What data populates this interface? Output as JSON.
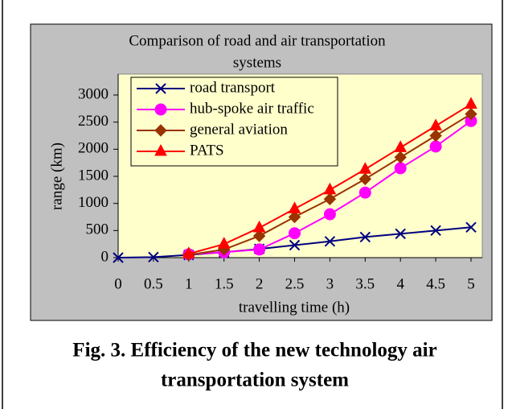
{
  "chart_data": {
    "type": "line",
    "title": [
      "Comparison of road and air transportation",
      "systems"
    ],
    "xlabel": "travelling time (h)",
    "ylabel": "range (km)",
    "x": [
      0,
      0.5,
      1,
      1.5,
      2,
      2.5,
      3,
      3.5,
      4,
      4.5,
      5
    ],
    "xlim": [
      0,
      5
    ],
    "xticks": [
      0,
      0.5,
      1,
      1.5,
      2,
      2.5,
      3,
      3.5,
      4,
      4.5,
      5
    ],
    "ylim": [
      0,
      3000
    ],
    "yticks": [
      0,
      500,
      1000,
      1500,
      2000,
      2500,
      3000
    ],
    "series": [
      {
        "name": "road transport",
        "color": "#000080",
        "marker": "x",
        "values": [
          0,
          10,
          50,
          100,
          160,
          230,
          300,
          380,
          440,
          500,
          560
        ]
      },
      {
        "name": "hub-spoke air traffic",
        "color": "#ff00ff",
        "marker": "circle",
        "values": [
          null,
          null,
          60,
          100,
          150,
          450,
          800,
          1200,
          1650,
          2050,
          2520
        ]
      },
      {
        "name": "general aviation",
        "color": "#993300",
        "marker": "diamond",
        "values": [
          null,
          null,
          50,
          150,
          400,
          750,
          1080,
          1450,
          1850,
          2250,
          2650
        ]
      },
      {
        "name": "PATS",
        "color": "#ff0000",
        "marker": "triangle",
        "values": [
          null,
          null,
          70,
          250,
          550,
          900,
          1250,
          1630,
          2030,
          2430,
          2830
        ]
      }
    ],
    "caption": [
      "Fig. 3. Efficiency of the new technology air",
      "transportation system"
    ]
  }
}
